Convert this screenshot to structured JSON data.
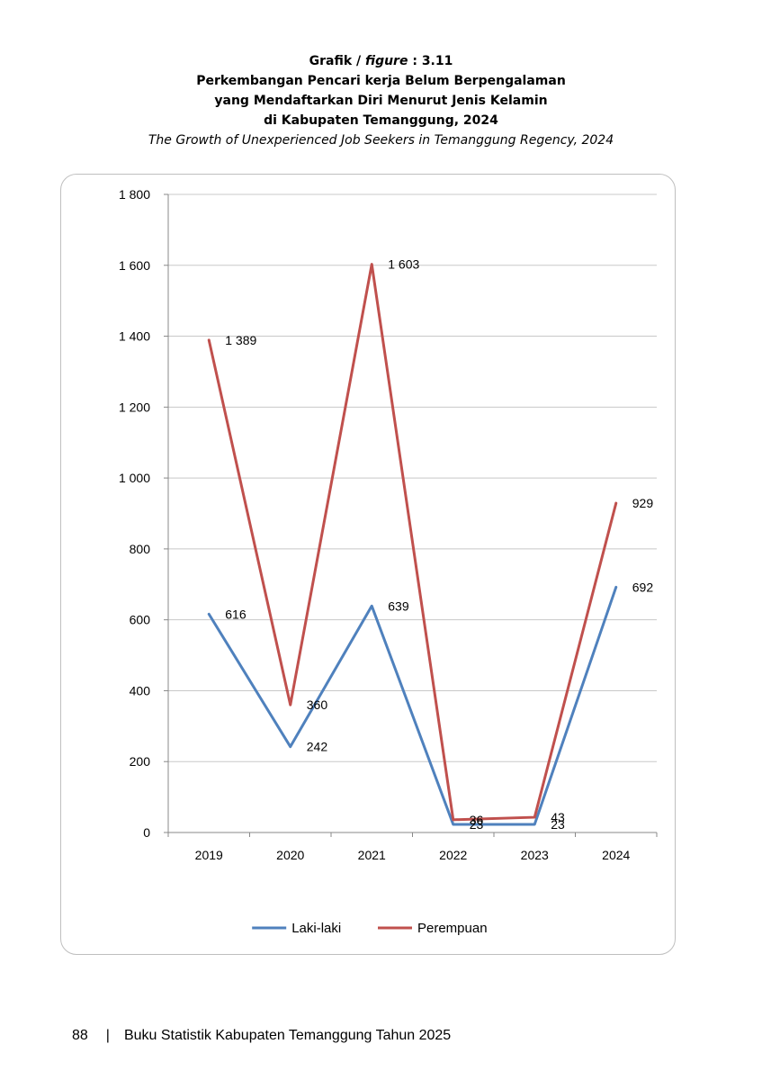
{
  "header": {
    "grafik": "Grafik /",
    "figure": "figure",
    "number": ": 3.11",
    "title_line1": "Perkembangan Pencari kerja Belum Berpengalaman",
    "title_line2": "yang Mendaftarkan Diri Menurut Jenis Kelamin",
    "title_line3": "di Kabupaten Temanggung, 2024",
    "subtitle": "The Growth of Unexperienced Job Seekers in Temanggung Regency, 2024"
  },
  "chart_data": {
    "type": "line",
    "categories": [
      "2019",
      "2020",
      "2021",
      "2022",
      "2023",
      "2024"
    ],
    "ylim": [
      0,
      1800
    ],
    "yticks": [
      0,
      200,
      400,
      600,
      800,
      1000,
      1200,
      1400,
      1600,
      1800
    ],
    "ytick_labels": [
      "0",
      "200",
      "400",
      "600",
      "800",
      "1 000",
      "1 200",
      "1 400",
      "1 600",
      "1 800"
    ],
    "grid": true,
    "legend_position": "bottom",
    "series": [
      {
        "name": "Laki-laki",
        "color": "#4F81BD",
        "values": [
          616,
          242,
          639,
          23,
          23,
          692
        ],
        "labels": [
          "616",
          "242",
          "639",
          "23",
          "23",
          "692"
        ]
      },
      {
        "name": "Perempuan",
        "color": "#C0504D",
        "values": [
          1389,
          360,
          1603,
          36,
          43,
          929
        ],
        "labels": [
          "1 389",
          "360",
          "1 603",
          "36",
          "43",
          "929"
        ]
      }
    ]
  },
  "footer": {
    "page_number": "88",
    "separator": "|",
    "book_title": "Buku Statistik Kabupaten Temanggung Tahun 2025"
  }
}
